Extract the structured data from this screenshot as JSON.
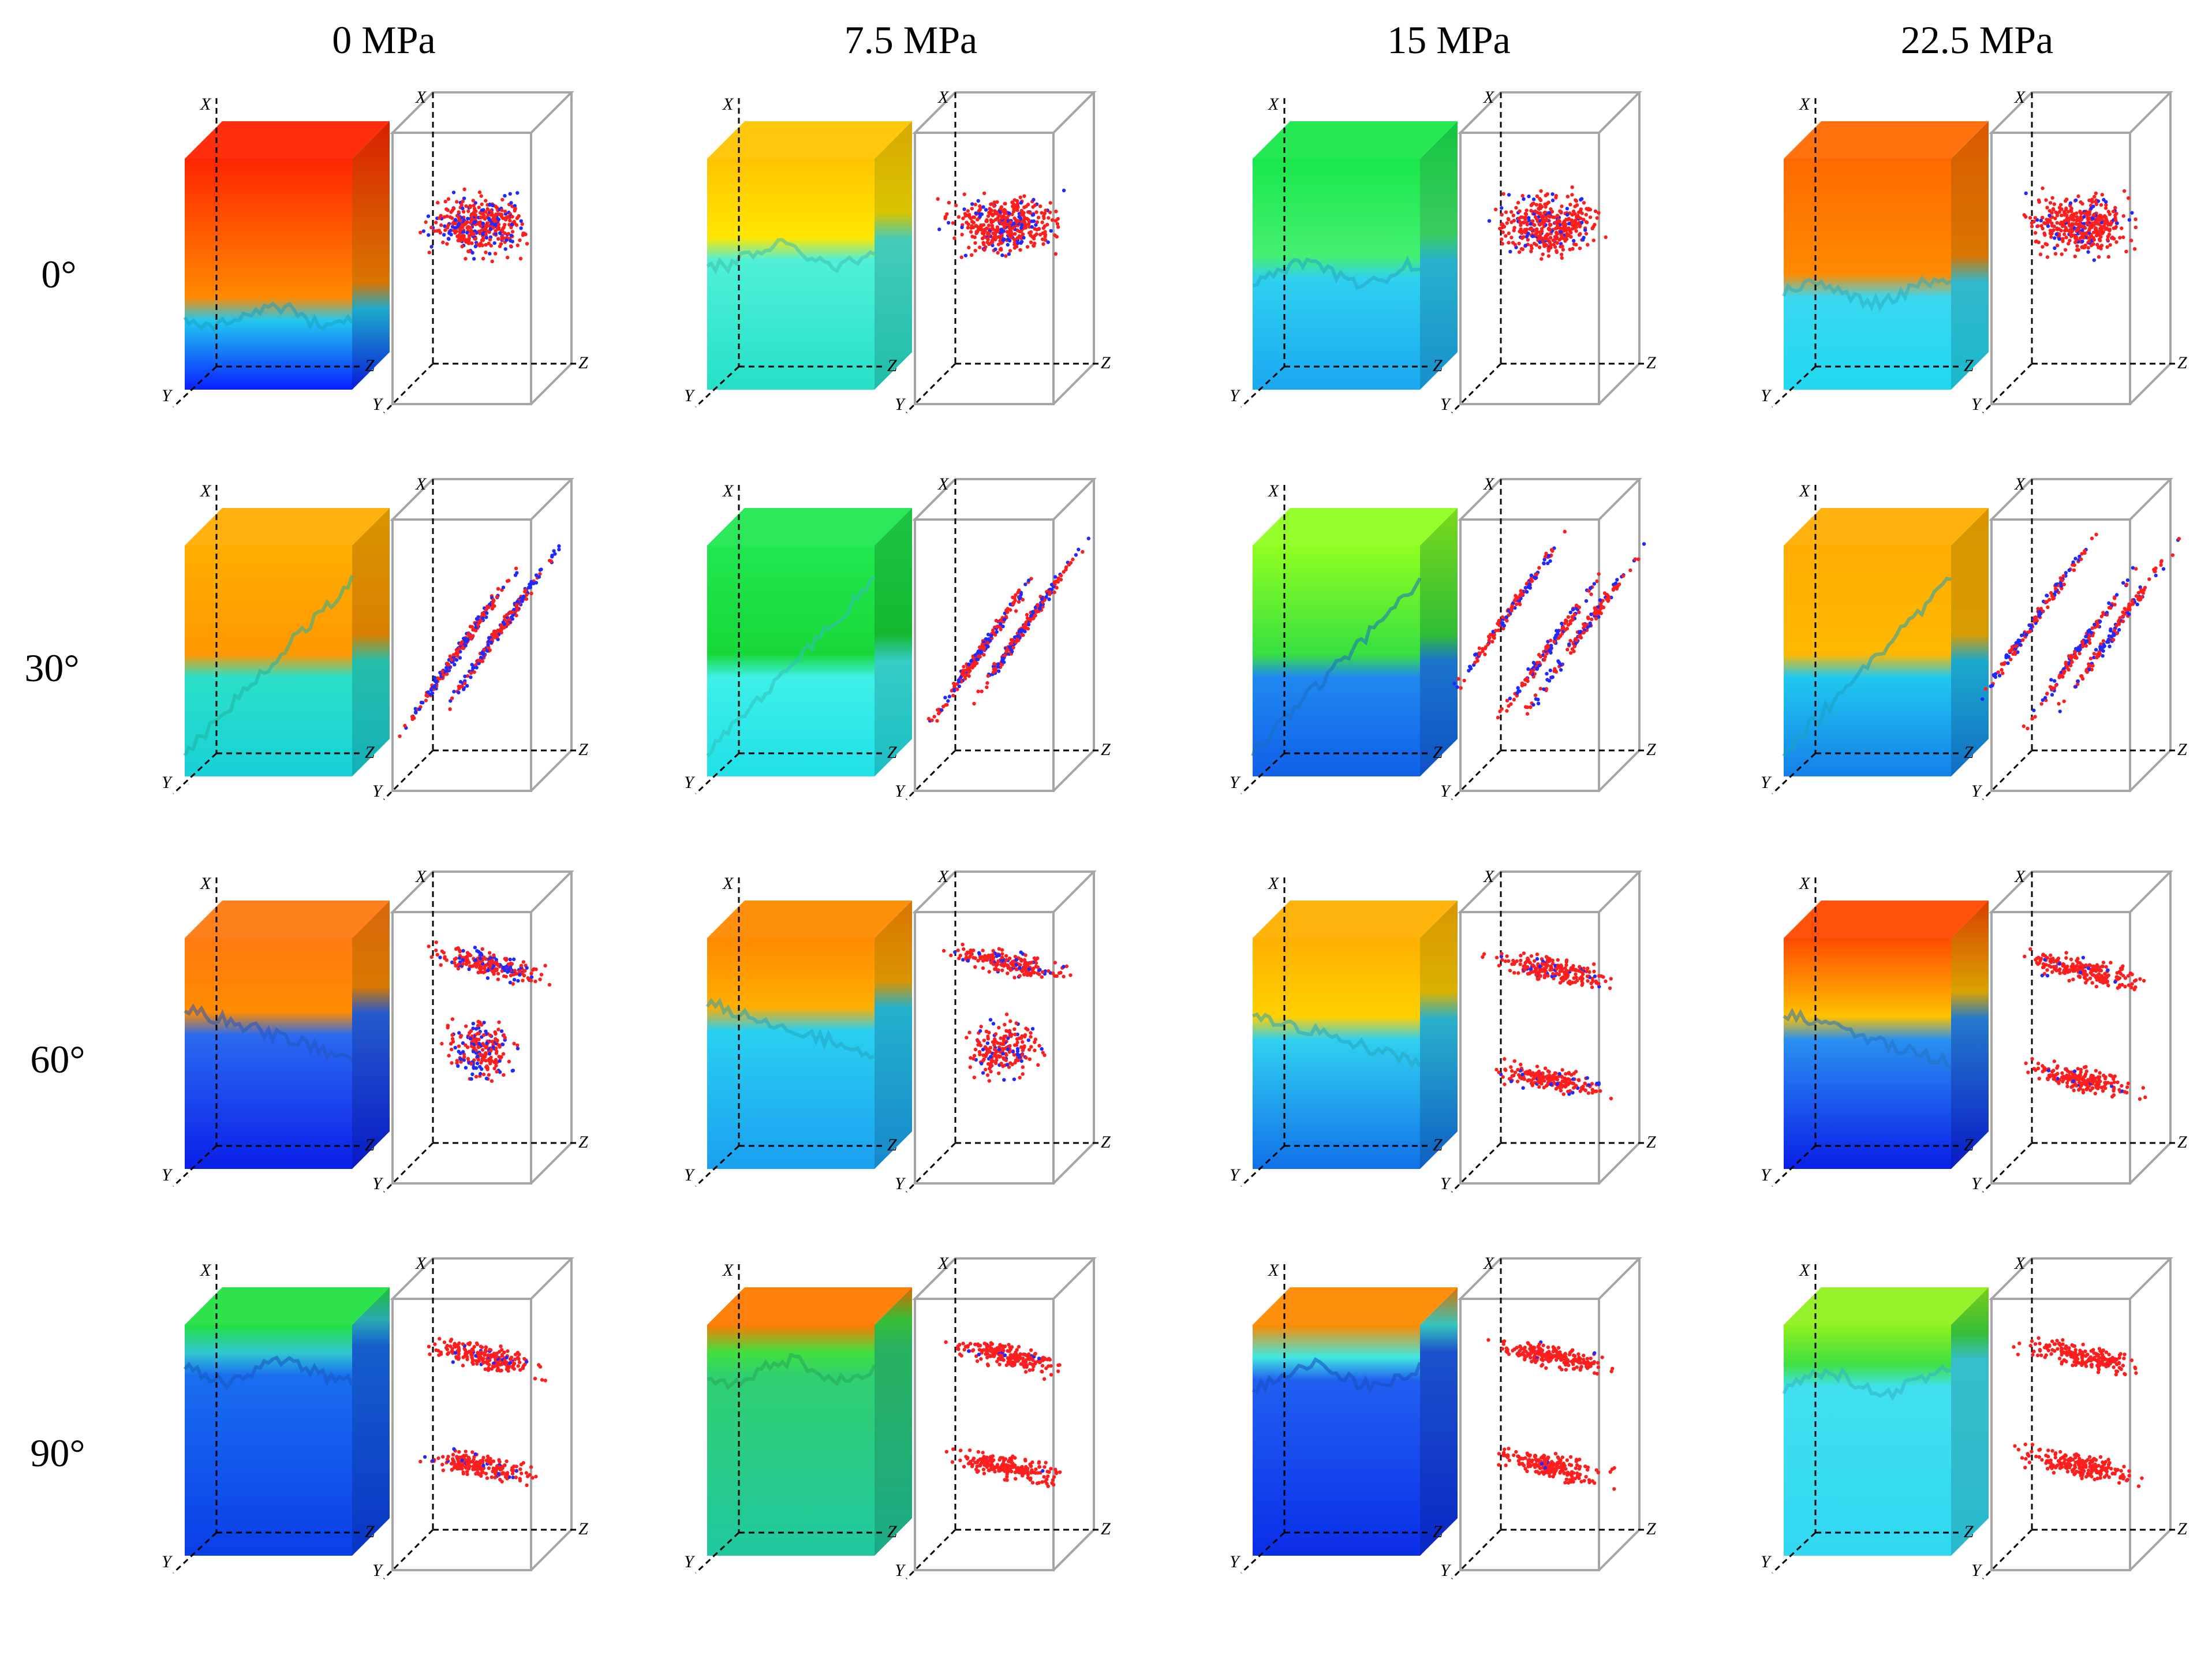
{
  "figure": {
    "pressures": [
      "0 MPa",
      "7.5 MPa",
      "15 MPa",
      "22.5 MPa"
    ],
    "angles": [
      "0°",
      "30°",
      "60°",
      "90°"
    ],
    "axis_labels": {
      "x": "X",
      "y": "Y",
      "z": "Z"
    },
    "colors": {
      "crack_red": "#ff1e1e",
      "crack_blue": "#1e2aff",
      "box_edge": "#a5a5a5"
    },
    "panels": [
      {
        "pressure": "0 MPa",
        "angle": "0°",
        "solid_colors": [
          "#ff2400",
          "#ff8a00",
          "#22c8f0",
          "#0a1fff"
        ],
        "boundary": 0.68,
        "fracture": "horizontal",
        "cloud": "single",
        "blue_share": 0.3
      },
      {
        "pressure": "7.5 MPa",
        "angle": "0°",
        "solid_colors": [
          "#ffc400",
          "#ffe600",
          "#4ff0d8",
          "#25e0c8"
        ],
        "boundary": 0.42,
        "fracture": "horizontal",
        "cloud": "single",
        "blue_share": 0.2
      },
      {
        "pressure": "15 MPa",
        "angle": "0°",
        "solid_colors": [
          "#18e84a",
          "#44f070",
          "#2fd0f0",
          "#1aa8f0"
        ],
        "boundary": 0.5,
        "fracture": "horizontal",
        "cloud": "single",
        "blue_share": 0.2
      },
      {
        "pressure": "22.5 MPa",
        "angle": "0°",
        "solid_colors": [
          "#ff6a00",
          "#ff8a00",
          "#3ad8f0",
          "#20d8f0"
        ],
        "boundary": 0.58,
        "fracture": "horizontal",
        "cloud": "single",
        "blue_share": 0.15
      },
      {
        "pressure": "0 MPa",
        "angle": "30°",
        "solid_colors": [
          "#ffae00",
          "#ff9800",
          "#2ae0c8",
          "#18d0d8"
        ],
        "boundary": 0.55,
        "fracture": "inclined",
        "cloud": "double",
        "blue_share": 0.5
      },
      {
        "pressure": "7.5 MPa",
        "angle": "30°",
        "solid_colors": [
          "#20e850",
          "#18d838",
          "#3ef0e8",
          "#20e0e8"
        ],
        "boundary": 0.55,
        "fracture": "inclined",
        "cloud": "double",
        "blue_share": 0.4
      },
      {
        "pressure": "15 MPa",
        "angle": "30°",
        "solid_colors": [
          "#90ff20",
          "#38e040",
          "#2088f0",
          "#1060e8"
        ],
        "boundary": 0.55,
        "fracture": "inclined",
        "cloud": "triple",
        "blue_share": 0.4
      },
      {
        "pressure": "22.5 MPa",
        "angle": "30°",
        "solid_colors": [
          "#ffae00",
          "#ffb800",
          "#20c8f0",
          "#1480e8"
        ],
        "boundary": 0.55,
        "fracture": "inclined",
        "cloud": "triple",
        "blue_share": 0.4
      },
      {
        "pressure": "0 MPa",
        "angle": "60°",
        "solid_colors": [
          "#ff7a10",
          "#ff8c00",
          "#2a6af0",
          "#0a1fe8"
        ],
        "boundary": 0.4,
        "fracture": "wedge",
        "cloud": "upper-dense",
        "blue_share": 0.3
      },
      {
        "pressure": "7.5 MPa",
        "angle": "60°",
        "solid_colors": [
          "#ff8a00",
          "#ffae00",
          "#2ad0f0",
          "#1aa0f0"
        ],
        "boundary": 0.38,
        "fracture": "wedge",
        "cloud": "upper-dense",
        "blue_share": 0.2
      },
      {
        "pressure": "15 MPa",
        "angle": "60°",
        "solid_colors": [
          "#ffb000",
          "#ffd000",
          "#30d0f0",
          "#1070e8"
        ],
        "boundary": 0.42,
        "fracture": "wedge",
        "cloud": "two-layer",
        "blue_share": 0.1
      },
      {
        "pressure": "22.5 MPa",
        "angle": "60°",
        "solid_colors": [
          "#ff4a00",
          "#ffc000",
          "#2a90f0",
          "#0a1fe8"
        ],
        "boundary": 0.42,
        "fracture": "wedge",
        "cloud": "two-layer",
        "blue_share": 0.05
      },
      {
        "pressure": "0 MPa",
        "angle": "90°",
        "solid_colors": [
          "#22e040",
          "#30c8d0",
          "#1a6ef0",
          "#0a3ee8"
        ],
        "boundary": 0.2,
        "fracture": "horizontal",
        "cloud": "two-layer",
        "blue_share": 0.08
      },
      {
        "pressure": "7.5 MPa",
        "angle": "90°",
        "solid_colors": [
          "#ff7a00",
          "#40e040",
          "#30d070",
          "#20c8a0"
        ],
        "boundary": 0.2,
        "fracture": "horizontal",
        "cloud": "two-layer",
        "blue_share": 0.02
      },
      {
        "pressure": "15 MPa",
        "angle": "90°",
        "solid_colors": [
          "#ff8a00",
          "#40e8e0",
          "#2060f0",
          "#0a2ee8"
        ],
        "boundary": 0.22,
        "fracture": "horizontal",
        "cloud": "two-layer",
        "blue_share": 0.02
      },
      {
        "pressure": "22.5 MPa",
        "angle": "90°",
        "solid_colors": [
          "#90f020",
          "#40e040",
          "#40e0f0",
          "#30d8f0"
        ],
        "boundary": 0.25,
        "fracture": "horizontal",
        "cloud": "two-layer",
        "blue_share": 0.0
      }
    ]
  }
}
